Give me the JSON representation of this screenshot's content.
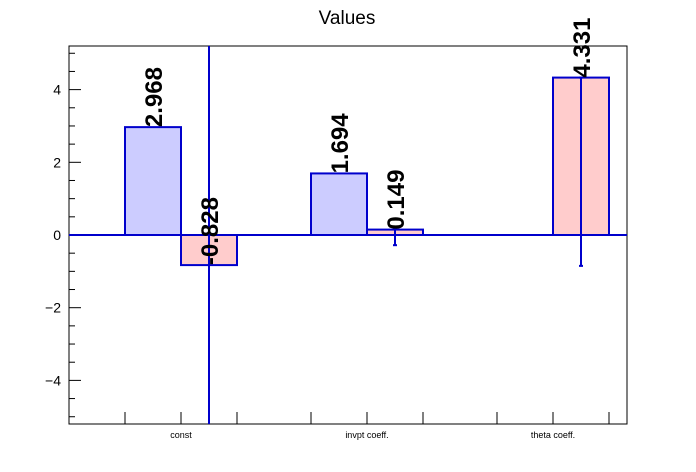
{
  "chart_data": {
    "type": "bar",
    "title": "Values",
    "categories": [
      "const",
      "invpt coeff.",
      "theta coeff."
    ],
    "ylim": [
      -5.2,
      5.2
    ],
    "yticks": [
      -4,
      -2,
      0,
      2,
      4
    ],
    "ytick_labels": [
      "−4",
      "−2",
      "0",
      "2",
      "4"
    ],
    "grid": false,
    "legend": "none",
    "series": [
      {
        "values": [
          2.968,
          1.694,
          null
        ],
        "labels": [
          "2.968",
          "1.694",
          ""
        ],
        "color": "#ccccff",
        "edge": "#0000cc"
      },
      {
        "values": [
          -0.828,
          0.149,
          4.331
        ],
        "labels": [
          "-0.828",
          "0.149",
          "4.331"
        ],
        "color": "#ffcccc",
        "edge": "#0000cc"
      }
    ],
    "error_bars": [
      {
        "category": "const",
        "series": 1,
        "low": -5.2,
        "high": 5.2
      },
      {
        "category": "invpt coeff.",
        "series": 1,
        "low": -0.28,
        "high": 0.18
      },
      {
        "category": "theta coeff.",
        "series": 1,
        "low": -0.85,
        "high": 4.331
      }
    ]
  }
}
